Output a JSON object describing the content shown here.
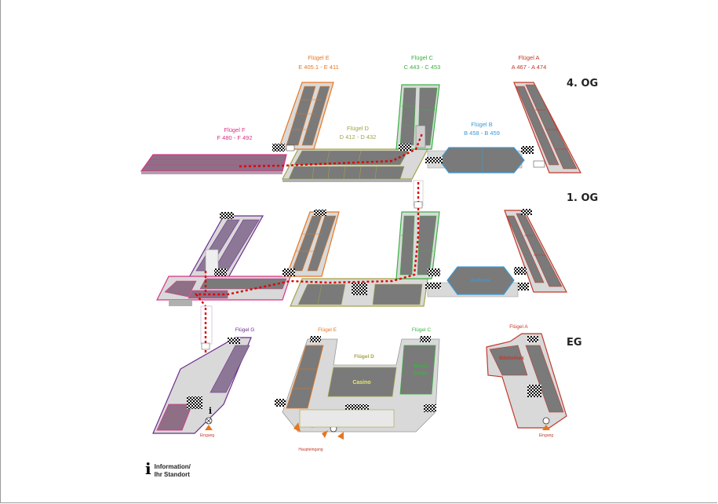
{
  "floors": {
    "og4": "4. OG",
    "og1": "1. OG",
    "eg": "EG"
  },
  "wings": {
    "e_name": "Flügel E",
    "e_range": "E 405.1 - E 411",
    "c_name": "Flügel C",
    "c_range": "C 443 - C 453",
    "a_name": "Flügel A",
    "a_range": "A 467 - A 474",
    "f_name": "Flügel F",
    "f_range": "F 480 - F 492",
    "d_name": "Flügel D",
    "d_range": "D 412 - D 432",
    "b_name": "Flügel B",
    "b_range": "B 458 - B 459",
    "g_eg": "Flügel G",
    "e_eg": "Flügel E",
    "c_eg": "Flügel C",
    "a_eg": "Flügel A",
    "d_eg": "Flügel D"
  },
  "rooms": {
    "audimax": "Audimax",
    "casino": "Casino",
    "bibliothek": "Bibliothek",
    "mensa_1": "Mensa",
    "mensa_2": "Studio"
  },
  "entrances": {
    "left": "Eingang",
    "main": "Haupteingang",
    "right": "Eingang"
  },
  "legend": {
    "icon": "i",
    "line1": "Information/",
    "line2": "Ihr Standort"
  },
  "colors": {
    "wing_e": "#e8761e",
    "wing_c": "#3cb043",
    "wing_a": "#c0392b",
    "wing_f": "#d63384",
    "wing_d": "#a3a34a",
    "wing_b": "#3b9ad6",
    "wing_g": "#6a2c8c",
    "route": "#e00000",
    "room": "#7a7a7a",
    "floor_plate": "#d9d9d9"
  }
}
